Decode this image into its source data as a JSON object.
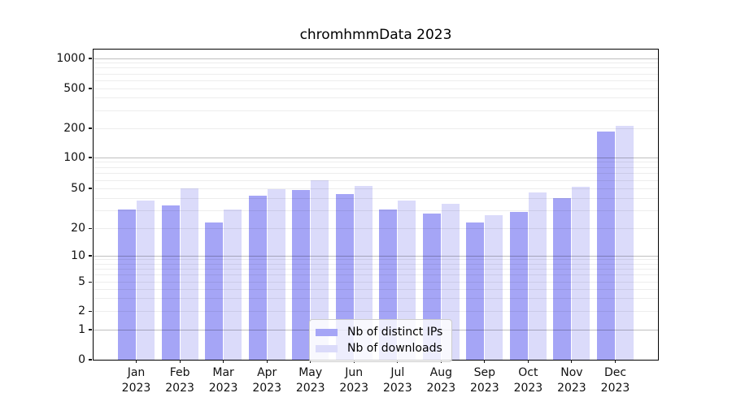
{
  "chart_data": {
    "type": "bar",
    "title": "chromhmmData 2023",
    "year": "2023",
    "months": [
      "Jan",
      "Feb",
      "Mar",
      "Apr",
      "May",
      "Jun",
      "Jul",
      "Aug",
      "Sep",
      "Oct",
      "Nov",
      "Dec"
    ],
    "categories": [
      "Jan 2023",
      "Feb 2023",
      "Mar 2023",
      "Apr 2023",
      "May 2023",
      "Jun 2023",
      "Jul 2023",
      "Aug 2023",
      "Sep 2023",
      "Oct 2023",
      "Nov 2023",
      "Dec 2023"
    ],
    "series": [
      {
        "name": "Nb of distinct IPs",
        "color": "#a5a5f6",
        "values": [
          31,
          34,
          23,
          42,
          48,
          44,
          31,
          28,
          23,
          29,
          40,
          185
        ]
      },
      {
        "name": "Nb of downloads",
        "color": "#dbdbfa",
        "values": [
          38,
          50,
          31,
          49,
          60,
          53,
          38,
          35,
          27,
          46,
          52,
          210
        ]
      }
    ],
    "y_axis": {
      "scale": "log-like (0 baseline, decades compressed near 1)",
      "tick_values": [
        0,
        1,
        2,
        5,
        10,
        20,
        50,
        100,
        200,
        500,
        1000
      ],
      "tick_labels": [
        "0",
        "1",
        "2",
        "5",
        "10",
        "20",
        "50",
        "100",
        "200",
        "500",
        "1000"
      ],
      "ylim": [
        0,
        1400
      ]
    },
    "grid": "horizontal major+minor, drawn over semi-transparent bars",
    "legend": {
      "position": "lower center of plot"
    }
  }
}
